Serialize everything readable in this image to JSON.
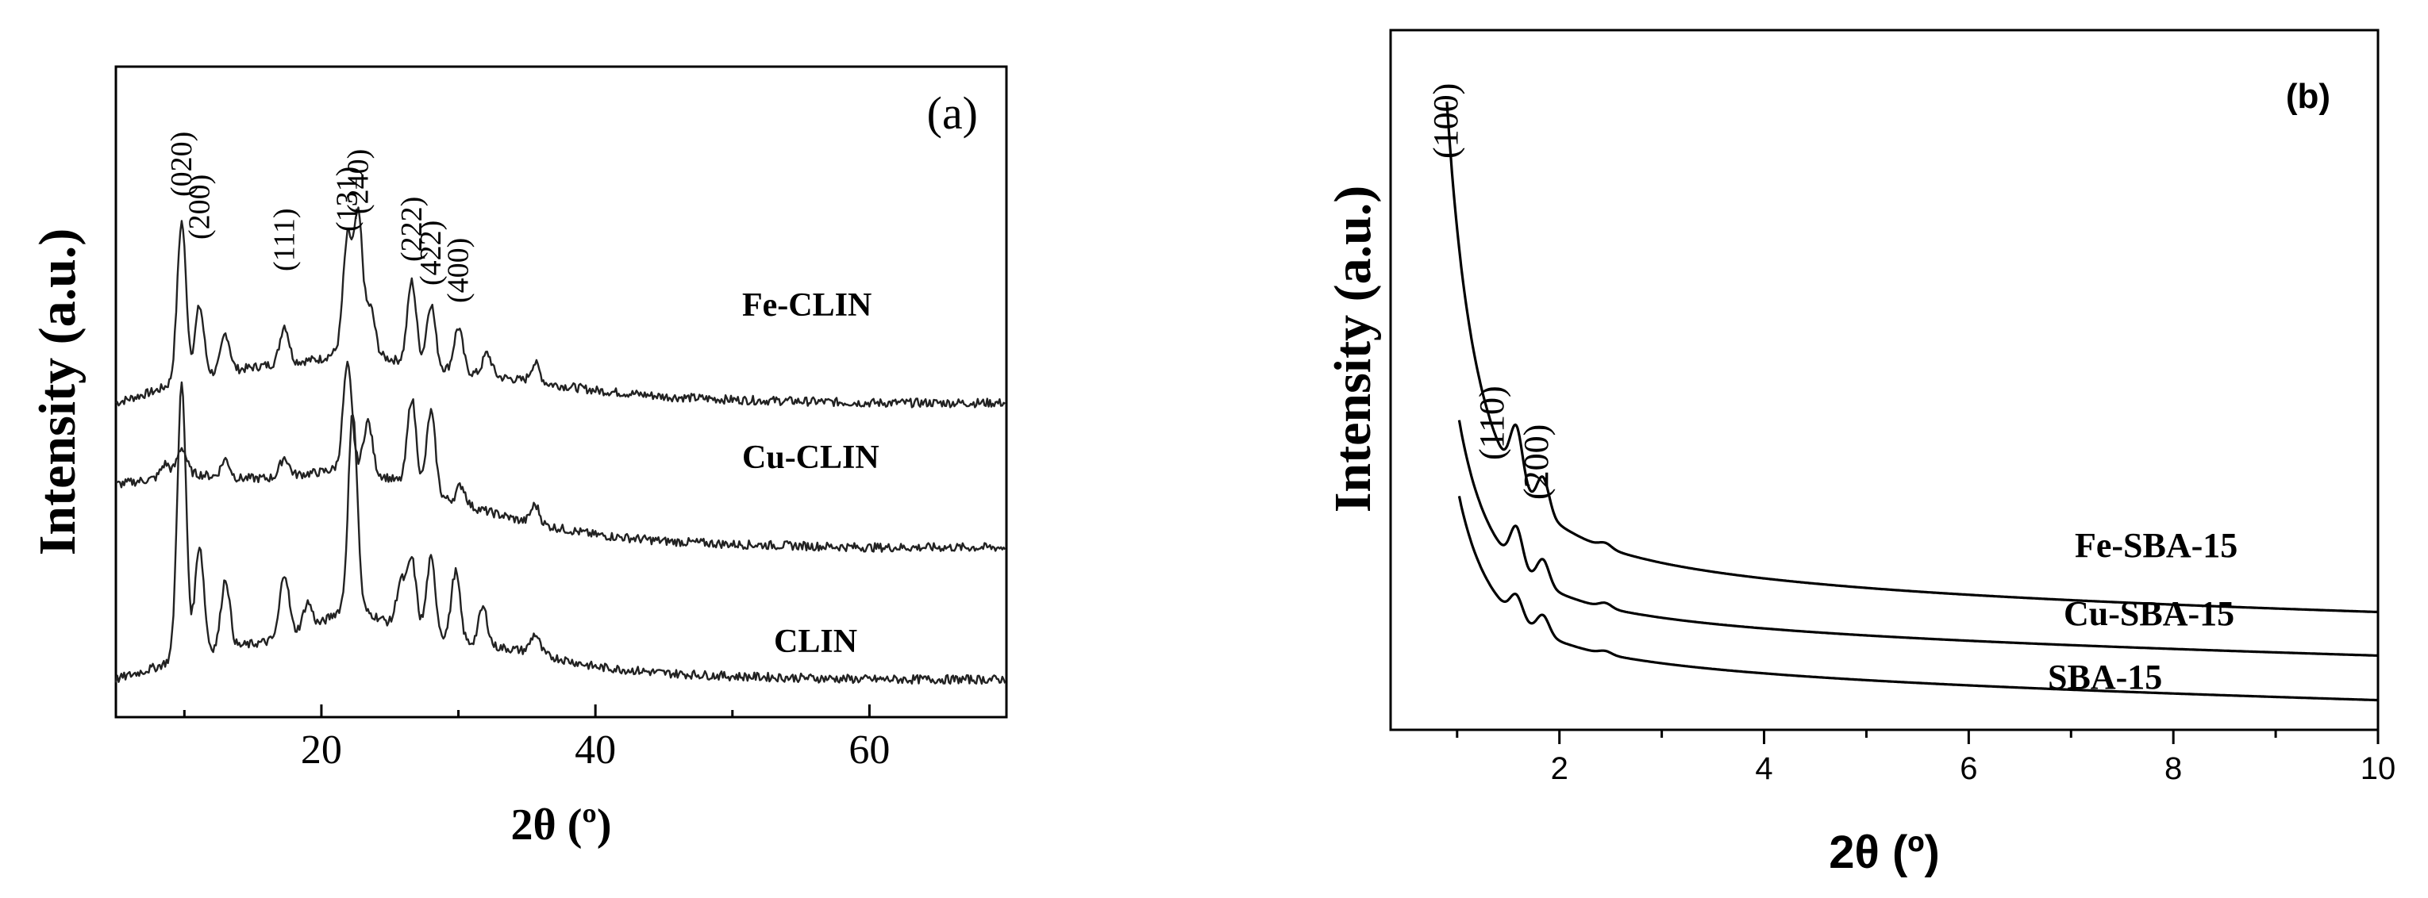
{
  "chart_data": [
    {
      "type": "line",
      "panel_label": "(a)",
      "xlabel": "2θ (º)",
      "ylabel": "Intensity (a.u.)",
      "xlim": [
        5,
        70
      ],
      "x_ticks": [
        "20",
        "40",
        "60"
      ],
      "y_ticks": [],
      "grid": false,
      "series": [
        {
          "name": "Fe-CLIN",
          "offset": 0.88,
          "baseline": [
            [
              5,
              0.0
            ],
            [
              8,
              0.04
            ],
            [
              10,
              0.08
            ],
            [
              13,
              0.1
            ],
            [
              16,
              0.12
            ],
            [
              20,
              0.14
            ],
            [
              22,
              0.18
            ],
            [
              25,
              0.14
            ],
            [
              30,
              0.1
            ],
            [
              35,
              0.07
            ],
            [
              40,
              0.04
            ],
            [
              45,
              0.02
            ],
            [
              50,
              0.01
            ],
            [
              60,
              0.0
            ],
            [
              70,
              0.0
            ]
          ],
          "peaks": [
            [
              9.8,
              0.5
            ],
            [
              11.1,
              0.22
            ],
            [
              13.0,
              0.12
            ],
            [
              17.3,
              0.12
            ],
            [
              21.9,
              0.34
            ],
            [
              22.7,
              0.42
            ],
            [
              23.6,
              0.14
            ],
            [
              26.6,
              0.26
            ],
            [
              28.0,
              0.2
            ],
            [
              30.0,
              0.14
            ],
            [
              32.1,
              0.07
            ],
            [
              35.6,
              0.06
            ]
          ]
        },
        {
          "name": "Cu-CLIN",
          "offset": 0.42,
          "baseline": [
            [
              5,
              0.2
            ],
            [
              8,
              0.22
            ],
            [
              10,
              0.24
            ],
            [
              13,
              0.22
            ],
            [
              16,
              0.22
            ],
            [
              20,
              0.24
            ],
            [
              22,
              0.26
            ],
            [
              25,
              0.22
            ],
            [
              30,
              0.14
            ],
            [
              35,
              0.08
            ],
            [
              40,
              0.04
            ],
            [
              45,
              0.02
            ],
            [
              50,
              0.01
            ],
            [
              60,
              0.0
            ],
            [
              70,
              0.0
            ]
          ],
          "peaks": [
            [
              8.6,
              0.04
            ],
            [
              9.8,
              0.08
            ],
            [
              13.0,
              0.06
            ],
            [
              17.3,
              0.06
            ],
            [
              21.9,
              0.32
            ],
            [
              23.4,
              0.16
            ],
            [
              26.6,
              0.28
            ],
            [
              28.0,
              0.26
            ],
            [
              30.2,
              0.06
            ],
            [
              35.6,
              0.06
            ]
          ]
        },
        {
          "name": "CLIN",
          "offset": 0.0,
          "baseline": [
            [
              5,
              0.0
            ],
            [
              8,
              0.04
            ],
            [
              10,
              0.08
            ],
            [
              13,
              0.1
            ],
            [
              16,
              0.12
            ],
            [
              20,
              0.18
            ],
            [
              22,
              0.24
            ],
            [
              25,
              0.18
            ],
            [
              30,
              0.12
            ],
            [
              35,
              0.09
            ],
            [
              38,
              0.06
            ],
            [
              40,
              0.04
            ],
            [
              45,
              0.02
            ],
            [
              50,
              0.01
            ],
            [
              60,
              0.0
            ],
            [
              70,
              0.0
            ]
          ],
          "peaks": [
            [
              9.8,
              0.86
            ],
            [
              11.1,
              0.34
            ],
            [
              13.0,
              0.22
            ],
            [
              17.3,
              0.2
            ],
            [
              19.0,
              0.08
            ],
            [
              22.3,
              0.62
            ],
            [
              25.8,
              0.14
            ],
            [
              26.6,
              0.22
            ],
            [
              28.0,
              0.24
            ],
            [
              29.8,
              0.22
            ],
            [
              31.8,
              0.12
            ],
            [
              35.6,
              0.06
            ]
          ]
        }
      ],
      "annotations": [
        {
          "text": "(020)",
          "x": 9.8
        },
        {
          "text": "(200)",
          "x": 11.1
        },
        {
          "text": "(111)",
          "x": 17.3
        },
        {
          "text": "(131)",
          "x": 21.9
        },
        {
          "text": "(240)",
          "x": 22.7
        },
        {
          "text": "(222)",
          "x": 26.6
        },
        {
          "text": "(422)",
          "x": 28.0
        },
        {
          "text": "(400)",
          "x": 30.0
        }
      ]
    },
    {
      "type": "line",
      "panel_label": "(b)",
      "xlabel": "2θ (º)",
      "ylabel": "Intensity (a.u.)",
      "xlim": [
        0.35,
        10
      ],
      "x_ticks": [
        "2",
        "4",
        "6",
        "8",
        "10"
      ],
      "y_ticks": [],
      "grid": false,
      "series": [
        {
          "name": "Fe-SBA-15",
          "start_x": 0.9,
          "start_y": 3.6,
          "tail_y": 0.55,
          "decay": 0.85,
          "peaks": [
            [
              1.58,
              0.34
            ],
            [
              1.84,
              0.22
            ],
            [
              2.45,
              0.03
            ]
          ]
        },
        {
          "name": "Cu-SBA-15",
          "start_x": 1.02,
          "start_y": 1.55,
          "tail_y": 0.28,
          "decay": 0.85,
          "peaks": [
            [
              1.58,
              0.24
            ],
            [
              1.84,
              0.16
            ],
            [
              2.45,
              0.03
            ]
          ]
        },
        {
          "name": "SBA-15",
          "start_x": 1.02,
          "start_y": 1.05,
          "tail_y": 0.0,
          "decay": 0.85,
          "peaks": [
            [
              1.58,
              0.14
            ],
            [
              1.84,
              0.12
            ],
            [
              2.45,
              0.02
            ]
          ]
        }
      ],
      "annotations": [
        {
          "text": "(100)",
          "x": 0.9
        },
        {
          "text": "(110)",
          "x": 1.58
        },
        {
          "text": "(200)",
          "x": 1.84
        }
      ]
    }
  ]
}
